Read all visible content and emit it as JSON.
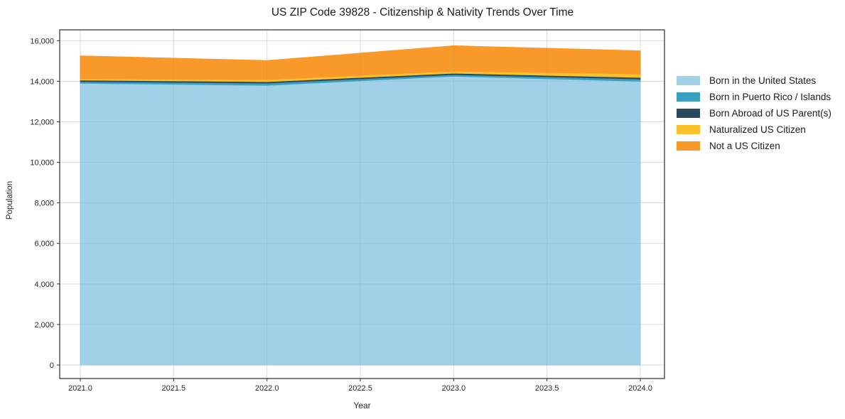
{
  "chart_data": {
    "type": "area",
    "stacked": true,
    "title": "US ZIP Code 39828 - Citizenship & Nativity Trends Over Time",
    "xlabel": "Year",
    "ylabel": "Population",
    "x": [
      2021,
      2022,
      2023,
      2024
    ],
    "series": [
      {
        "name": "Born in the United States",
        "color": "#A0D1E7",
        "values": [
          13900,
          13800,
          14250,
          14000
        ]
      },
      {
        "name": "Born in Puerto Rico / Islands",
        "color": "#3BA0BF",
        "values": [
          90,
          110,
          80,
          110
        ]
      },
      {
        "name": "Born Abroad of US Parent(s)",
        "color": "#29495D",
        "values": [
          70,
          70,
          70,
          80
        ]
      },
      {
        "name": "Naturalized US Citizen",
        "color": "#FBC12D",
        "values": [
          60,
          100,
          100,
          170
        ]
      },
      {
        "name": "Not a US Citizen",
        "color": "#F8992A",
        "values": [
          1130,
          940,
          1250,
          1140
        ]
      }
    ],
    "totals": [
      15250,
      15020,
      15750,
      15500
    ],
    "x_tick_values": [
      2021.0,
      2021.5,
      2022.0,
      2022.5,
      2023.0,
      2023.5,
      2024.0
    ],
    "x_tick_labels": [
      "2021.0",
      "2021.5",
      "2022.0",
      "2022.5",
      "2023.0",
      "2023.5",
      "2024.0"
    ],
    "y_tick_values": [
      0,
      2000,
      4000,
      6000,
      8000,
      10000,
      12000,
      14000,
      16000
    ],
    "y_tick_labels": [
      "0",
      "2,000",
      "4,000",
      "6,000",
      "8,000",
      "10,000",
      "12,000",
      "14,000",
      "16,000"
    ],
    "xlim": [
      2020.89,
      2024.13
    ],
    "ylim": [
      -670,
      16540
    ],
    "grid": true,
    "legend_position": "right-outside",
    "colors": {
      "grid": "#e7e7e7",
      "grid_overlay": "rgba(110,110,110,0.10)",
      "frame": "#2a2a2a",
      "tick": "#2a2a2a",
      "background": "#ffffff"
    }
  }
}
